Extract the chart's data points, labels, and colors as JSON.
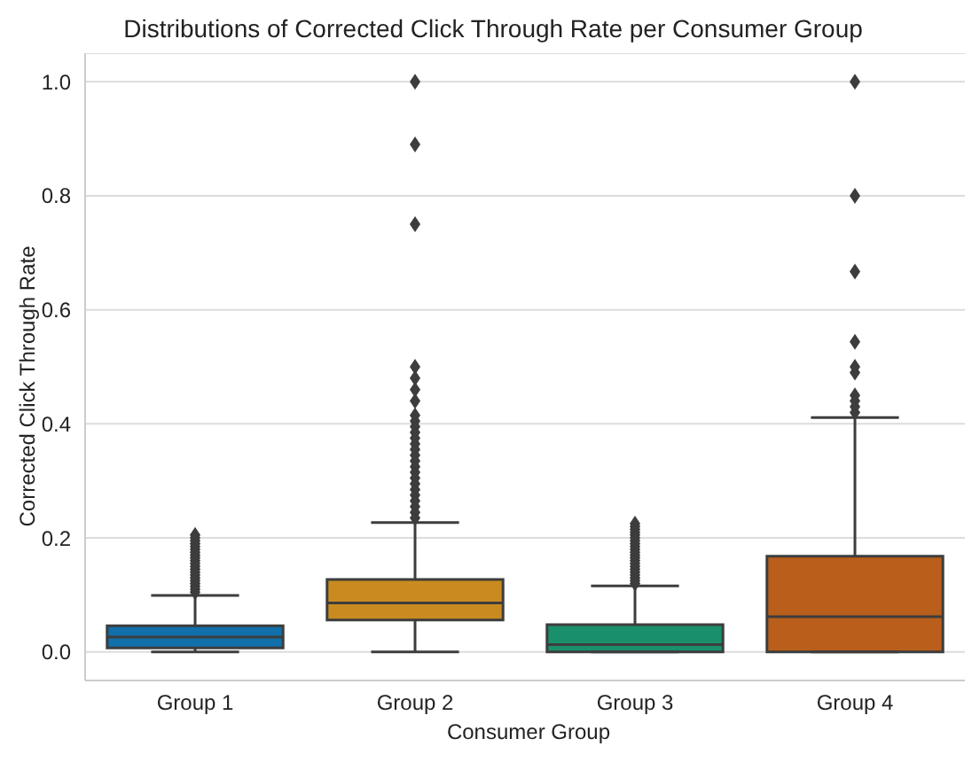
{
  "chart_data": {
    "type": "box",
    "title": "Distributions of Corrected Click Through Rate per Consumer Group",
    "xlabel": "Consumer Group",
    "ylabel": "Corrected Click Through Rate",
    "categories": [
      "Group 1",
      "Group 2",
      "Group 3",
      "Group 4"
    ],
    "colors": [
      "#1170aa",
      "#c98b20",
      "#1a8f6b",
      "#b95f1b"
    ],
    "boxes": [
      {
        "low": 0,
        "q1": 0.007,
        "median": 0.026,
        "q3": 0.046,
        "high": 0.099,
        "outliers": [
          0.105,
          0.11,
          0.115,
          0.12,
          0.125,
          0.13,
          0.135,
          0.14,
          0.145,
          0.15,
          0.155,
          0.16,
          0.165,
          0.17,
          0.175,
          0.18,
          0.185,
          0.19,
          0.195,
          0.2,
          0.205
        ]
      },
      {
        "low": 0,
        "q1": 0.056,
        "median": 0.086,
        "q3": 0.127,
        "high": 0.227,
        "outliers": [
          0.235,
          0.245,
          0.255,
          0.265,
          0.275,
          0.285,
          0.295,
          0.305,
          0.315,
          0.325,
          0.335,
          0.345,
          0.355,
          0.365,
          0.375,
          0.385,
          0.395,
          0.405,
          0.415,
          0.44,
          0.46,
          0.48,
          0.5,
          0.75,
          0.89,
          1.0
        ]
      },
      {
        "low": 0,
        "q1": 0,
        "median": 0.013,
        "q3": 0.048,
        "high": 0.116,
        "outliers": [
          0.12,
          0.125,
          0.13,
          0.135,
          0.14,
          0.145,
          0.15,
          0.155,
          0.16,
          0.165,
          0.17,
          0.175,
          0.18,
          0.185,
          0.19,
          0.195,
          0.2,
          0.205,
          0.21,
          0.215,
          0.22,
          0.225
        ]
      },
      {
        "low": 0,
        "q1": 0,
        "median": 0.062,
        "q3": 0.168,
        "high": 0.411,
        "outliers": [
          0.42,
          0.43,
          0.44,
          0.45,
          0.49,
          0.5,
          0.544,
          0.667,
          0.8,
          1.0
        ]
      }
    ],
    "marker": "diamond",
    "ylim": [
      -0.05,
      1.05
    ],
    "yticks": [
      {
        "value": 0,
        "label": "0.0"
      },
      {
        "value": 0.2,
        "label": "0.2"
      },
      {
        "value": 0.4,
        "label": "0.4"
      },
      {
        "value": 0.6,
        "label": "0.6"
      },
      {
        "value": 0.8,
        "label": "0.8"
      },
      {
        "value": 1,
        "label": "1.0"
      }
    ],
    "grid": "y"
  }
}
